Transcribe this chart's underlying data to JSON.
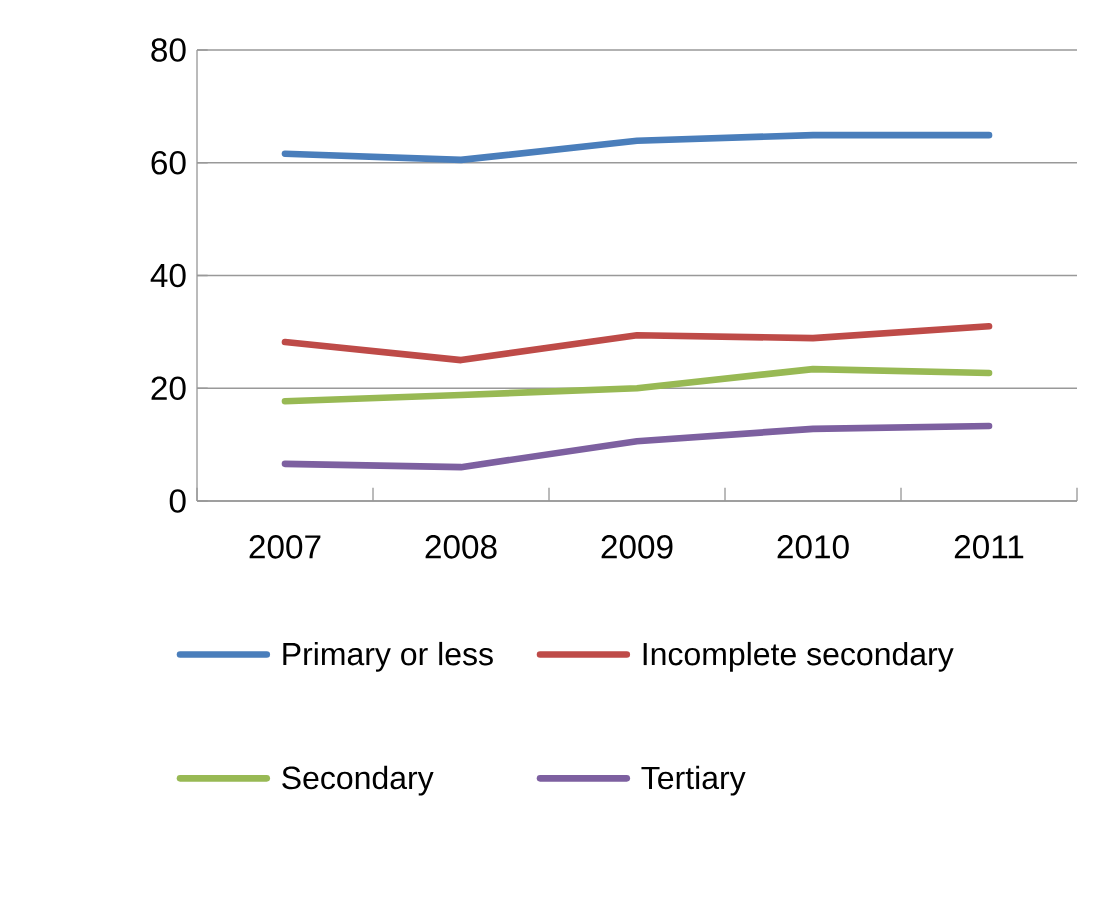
{
  "chart_data": {
    "type": "line",
    "categories": [
      "2007",
      "2008",
      "2009",
      "2010",
      "2011"
    ],
    "series": [
      {
        "name": "Primary or less",
        "color": "#4a7ebb",
        "values": [
          61.6,
          60.5,
          63.9,
          64.9,
          64.9
        ]
      },
      {
        "name": "Incomplete secondary",
        "color": "#be4b48",
        "values": [
          28.2,
          25.0,
          29.4,
          28.9,
          31.0
        ]
      },
      {
        "name": "Secondary",
        "color": "#98b954",
        "values": [
          17.7,
          18.8,
          20.0,
          23.4,
          22.7
        ]
      },
      {
        "name": "Tertiary",
        "color": "#7d60a0",
        "values": [
          6.6,
          6.0,
          10.6,
          12.8,
          13.3
        ]
      }
    ],
    "ylim": [
      0,
      80
    ],
    "yticks": [
      0,
      20,
      40,
      60,
      80
    ],
    "grid": "y",
    "legend": "bottom",
    "marker": "none",
    "line_style": "solid"
  }
}
